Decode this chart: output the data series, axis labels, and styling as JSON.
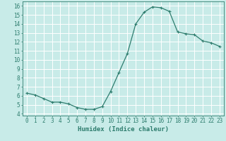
{
  "x": [
    0,
    1,
    2,
    3,
    4,
    5,
    6,
    7,
    8,
    9,
    10,
    11,
    12,
    13,
    14,
    15,
    16,
    17,
    18,
    19,
    20,
    21,
    22,
    23
  ],
  "y": [
    6.3,
    6.1,
    5.7,
    5.3,
    5.3,
    5.1,
    4.7,
    4.5,
    4.5,
    4.8,
    6.5,
    8.6,
    10.7,
    14.0,
    15.3,
    15.9,
    15.8,
    15.4,
    13.1,
    12.9,
    12.8,
    12.1,
    11.9,
    11.5
  ],
  "line_color": "#2e7d6e",
  "marker": "+",
  "marker_size": 3,
  "bg_color": "#c8ebe8",
  "grid_color": "#ffffff",
  "xlabel": "Humidex (Indice chaleur)",
  "xlim": [
    -0.5,
    23.5
  ],
  "ylim": [
    3.8,
    16.5
  ],
  "xticks": [
    0,
    1,
    2,
    3,
    4,
    5,
    6,
    7,
    8,
    9,
    10,
    11,
    12,
    13,
    14,
    15,
    16,
    17,
    18,
    19,
    20,
    21,
    22,
    23
  ],
  "yticks": [
    4,
    5,
    6,
    7,
    8,
    9,
    10,
    11,
    12,
    13,
    14,
    15,
    16
  ],
  "tick_color": "#2e7d6e",
  "label_fontsize": 5.5,
  "xlabel_fontsize": 6.5
}
